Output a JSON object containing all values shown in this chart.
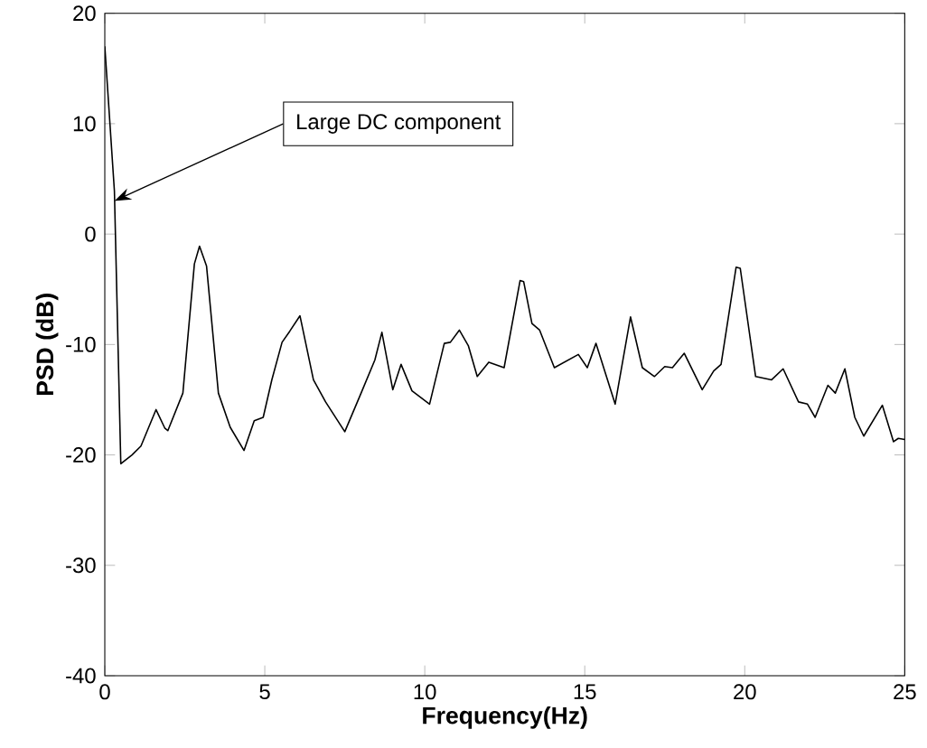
{
  "chart_data": {
    "type": "line",
    "xlabel": "Frequency(Hz)",
    "ylabel": "PSD (dB)",
    "xlim": [
      0,
      25
    ],
    "ylim": [
      -40,
      20
    ],
    "xticks": [
      0,
      5,
      10,
      15,
      20,
      25
    ],
    "yticks": [
      -40,
      -30,
      -20,
      -10,
      0,
      10,
      20
    ],
    "grid": false,
    "marker": "none",
    "line_style": "solid",
    "series": [
      {
        "color": "#000000",
        "x": [
          0,
          0.3,
          0.5,
          0.85,
          1.13,
          1.6,
          1.88,
          1.97,
          2.44,
          2.8,
          2.96,
          3.18,
          3.55,
          3.92,
          4.35,
          4.67,
          4.95,
          5.22,
          5.54,
          5.78,
          6.1,
          6.52,
          6.9,
          7.5,
          8.01,
          8.44,
          8.66,
          9.0,
          9.26,
          9.6,
          10.15,
          10.61,
          10.8,
          11.08,
          11.36,
          11.64,
          12.0,
          12.48,
          12.98,
          13.09,
          13.35,
          13.59,
          14.05,
          14.8,
          15.08,
          15.35,
          15.95,
          16.43,
          16.8,
          17.18,
          17.5,
          17.74,
          18.11,
          18.67,
          19.03,
          19.26,
          19.73,
          19.86,
          20.34,
          20.84,
          21.2,
          21.68,
          21.96,
          22.2,
          22.6,
          22.83,
          23.13,
          23.44,
          23.72,
          24.3,
          24.65,
          24.8,
          25.0
        ],
        "values": [
          17.0,
          3.9,
          -20.8,
          -20.0,
          -19.2,
          -15.9,
          -17.6,
          -17.8,
          -14.4,
          -2.7,
          -1.1,
          -2.9,
          -14.4,
          -17.5,
          -19.6,
          -16.9,
          -16.6,
          -13.2,
          -9.8,
          -8.8,
          -7.4,
          -13.2,
          -15.2,
          -17.9,
          -14.4,
          -11.4,
          -8.9,
          -14.1,
          -11.8,
          -14.2,
          -15.4,
          -9.9,
          -9.8,
          -8.7,
          -10.1,
          -12.9,
          -11.6,
          -12.1,
          -4.2,
          -4.3,
          -8.1,
          -8.7,
          -12.1,
          -10.9,
          -12.1,
          -9.9,
          -15.4,
          -7.5,
          -12.1,
          -12.9,
          -12.0,
          -12.1,
          -10.8,
          -14.1,
          -12.4,
          -11.8,
          -3.0,
          -3.1,
          -12.9,
          -13.2,
          -12.2,
          -15.2,
          -15.4,
          -16.6,
          -13.7,
          -14.4,
          -12.2,
          -16.6,
          -18.3,
          -15.5,
          -18.8,
          -18.5,
          -18.6
        ]
      }
    ],
    "annotations": [
      {
        "text": "Large DC component",
        "x": 0.3,
        "y": 3.0
      }
    ]
  }
}
